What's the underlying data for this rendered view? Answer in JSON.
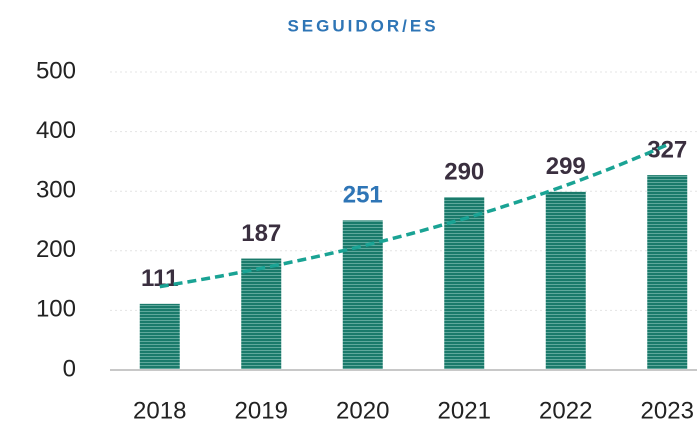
{
  "chart_data": {
    "type": "bar",
    "title": "SEGUIDOR/ES",
    "categories": [
      "2018",
      "2019",
      "2020",
      "2021",
      "2022",
      "2023"
    ],
    "values": [
      111,
      187,
      251,
      290,
      299,
      327
    ],
    "color": "#1a7a6b",
    "label_colors": [
      "#3a2f3f",
      "#3a2f3f",
      "#2e75b6",
      "#3a2f3f",
      "#3a2f3f",
      "#3a2f3f"
    ],
    "ylim": [
      0,
      500
    ],
    "yticks": [
      0,
      100,
      200,
      300,
      400,
      500
    ],
    "grid": true,
    "trendline": {
      "type": "exponential",
      "color": "#1aa394"
    }
  }
}
